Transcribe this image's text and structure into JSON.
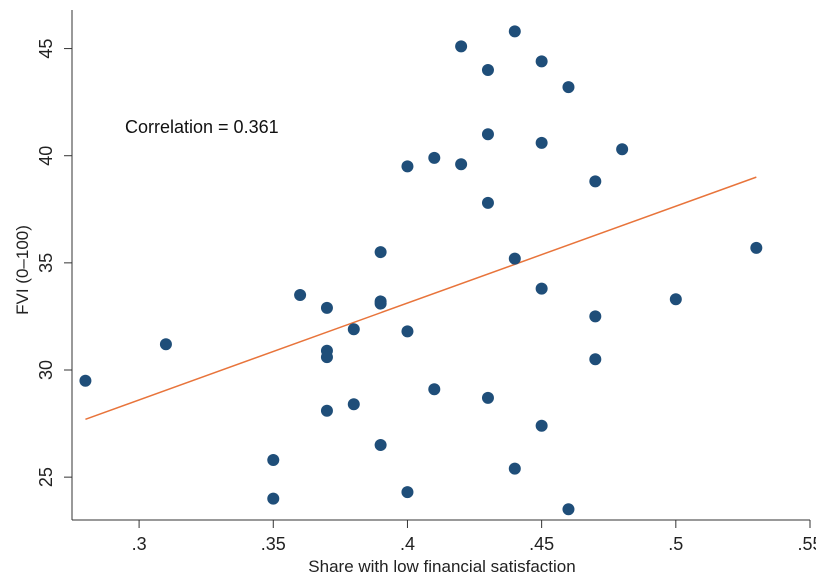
{
  "chart_data": {
    "type": "scatter",
    "xlabel": "Share with low financial satisfaction",
    "ylabel": "FVI (0–100)",
    "annotation": "Correlation = 0.361",
    "xlim": [
      0.275,
      0.55
    ],
    "ylim": [
      23.0,
      46.8
    ],
    "x_ticks": [
      {
        "value": 0.3,
        "label": ".3"
      },
      {
        "value": 0.35,
        "label": ".35"
      },
      {
        "value": 0.4,
        "label": ".4"
      },
      {
        "value": 0.45,
        "label": ".45"
      },
      {
        "value": 0.5,
        "label": ".5"
      },
      {
        "value": 0.55,
        "label": ".55"
      }
    ],
    "y_ticks": [
      {
        "value": 25,
        "label": "25"
      },
      {
        "value": 30,
        "label": "30"
      },
      {
        "value": 35,
        "label": "35"
      },
      {
        "value": 40,
        "label": "40"
      },
      {
        "value": 45,
        "label": "45"
      }
    ],
    "points": [
      {
        "x": 0.28,
        "y": 29.5
      },
      {
        "x": 0.31,
        "y": 31.2
      },
      {
        "x": 0.35,
        "y": 25.8
      },
      {
        "x": 0.35,
        "y": 24.0
      },
      {
        "x": 0.36,
        "y": 33.5
      },
      {
        "x": 0.37,
        "y": 32.9
      },
      {
        "x": 0.37,
        "y": 30.9
      },
      {
        "x": 0.37,
        "y": 30.6
      },
      {
        "x": 0.37,
        "y": 28.1
      },
      {
        "x": 0.38,
        "y": 31.9
      },
      {
        "x": 0.38,
        "y": 28.4
      },
      {
        "x": 0.39,
        "y": 35.5
      },
      {
        "x": 0.39,
        "y": 33.2
      },
      {
        "x": 0.39,
        "y": 33.1
      },
      {
        "x": 0.39,
        "y": 26.5
      },
      {
        "x": 0.4,
        "y": 39.5
      },
      {
        "x": 0.4,
        "y": 31.8
      },
      {
        "x": 0.4,
        "y": 24.3
      },
      {
        "x": 0.41,
        "y": 39.9
      },
      {
        "x": 0.41,
        "y": 29.1
      },
      {
        "x": 0.42,
        "y": 45.1
      },
      {
        "x": 0.42,
        "y": 39.6
      },
      {
        "x": 0.43,
        "y": 44.0
      },
      {
        "x": 0.43,
        "y": 41.0
      },
      {
        "x": 0.43,
        "y": 37.8
      },
      {
        "x": 0.43,
        "y": 28.7
      },
      {
        "x": 0.44,
        "y": 45.8
      },
      {
        "x": 0.44,
        "y": 35.2
      },
      {
        "x": 0.44,
        "y": 25.4
      },
      {
        "x": 0.45,
        "y": 44.4
      },
      {
        "x": 0.45,
        "y": 40.6
      },
      {
        "x": 0.45,
        "y": 33.8
      },
      {
        "x": 0.45,
        "y": 27.4
      },
      {
        "x": 0.46,
        "y": 43.2
      },
      {
        "x": 0.46,
        "y": 23.5
      },
      {
        "x": 0.47,
        "y": 38.8
      },
      {
        "x": 0.47,
        "y": 32.5
      },
      {
        "x": 0.47,
        "y": 30.5
      },
      {
        "x": 0.48,
        "y": 40.3
      },
      {
        "x": 0.5,
        "y": 33.3
      },
      {
        "x": 0.53,
        "y": 35.7
      }
    ],
    "fit_line": {
      "x": [
        0.28,
        0.53
      ],
      "y": [
        27.7,
        39.0
      ]
    },
    "colors": {
      "points": "#1f4e79",
      "fit_line": "#e8743b",
      "axis": "#333333"
    },
    "grid": false
  }
}
